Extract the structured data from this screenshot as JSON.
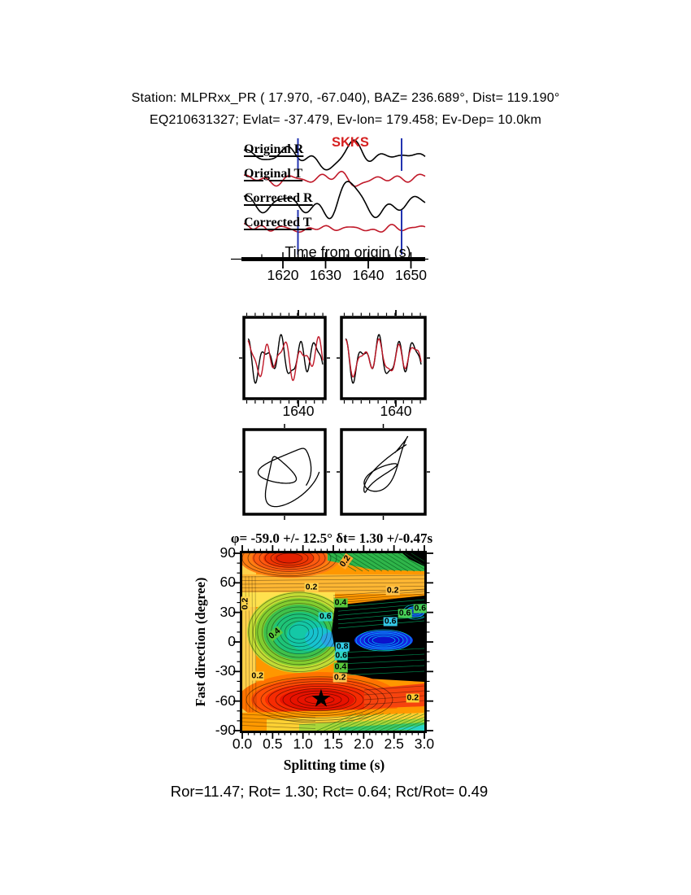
{
  "header": {
    "line1": "Station: MLPRxx_PR (  17.970,  -67.040), BAZ=  236.689°, Dist=  119.190°",
    "line2": "EQ210631327; Evlat= -37.479, Ev-lon= 179.458; Ev-Dep= 10.0km"
  },
  "waveform_panel": {
    "phase_label": "SKKS",
    "trace_labels": [
      "Original R",
      "Original T",
      "Corrected R",
      "Corrected T"
    ],
    "axis_title": "Time from origin (s)",
    "tick_labels": [
      "1620",
      "1630",
      "1640",
      "1650"
    ]
  },
  "comparison_panels": {
    "left_tick": "1640",
    "right_tick": "1640"
  },
  "contour_panel": {
    "title": "φ= -59.0 +/- 12.5° δt= 1.30 +/-0.47s",
    "ylabel": "Fast direction (degree)",
    "xlabel": "Splitting time (s)",
    "ytick_labels": [
      "90",
      "60",
      "30",
      "0",
      "-30",
      "-60",
      "-90"
    ],
    "xtick_labels": [
      "0.0",
      "0.5",
      "1.0",
      "1.5",
      "2.0",
      "2.5",
      "3.0"
    ],
    "star_glyph": "★"
  },
  "footer": {
    "text": "Ror=11.47; Rot= 1.30; Rct= 0.64; Rct/Rot= 0.49"
  },
  "colors": {
    "trace_black": "#000000",
    "trace_red": "#c01828",
    "pick_blue": "#2233b0",
    "phase_red": "#d62020"
  },
  "chart_data": {
    "type": "heatmap",
    "title": "φ= -59.0 +/- 12.5° δt= 1.30 +/-0.47s",
    "xlabel": "Splitting time (s)",
    "ylabel": "Fast direction (degree)",
    "xlim": [
      0.0,
      3.0
    ],
    "ylim": [
      -90,
      90
    ],
    "xticks": [
      0.0,
      0.5,
      1.0,
      1.5,
      2.0,
      2.5,
      3.0
    ],
    "yticks": [
      90,
      60,
      30,
      0,
      -30,
      -60,
      -90
    ],
    "grid": false,
    "best_fit": {
      "fast_direction_deg": -59.0,
      "fast_direction_err_deg": 12.5,
      "delay_time_s": 1.3,
      "delay_time_err_s": 0.47,
      "star_x_s": 1.3,
      "star_y_deg": -59
    },
    "contour_levels": [
      0.2,
      0.4,
      0.6,
      0.8
    ],
    "contour_labels": [
      {
        "v": "0.2",
        "x": 1.14,
        "y": 55,
        "rot": 0,
        "bg": "#ffd34d"
      },
      {
        "v": "0.2",
        "x": 2.48,
        "y": 52,
        "rot": 0,
        "bg": "#ffc34d"
      },
      {
        "v": "0.2",
        "x": 1.7,
        "y": 82,
        "rot": -55,
        "bg": "#ffaa33"
      },
      {
        "v": "0.2",
        "x": 0.05,
        "y": 39,
        "rot": -90,
        "bg": "#ffd34d"
      },
      {
        "v": "0.4",
        "x": 0.54,
        "y": 8,
        "rot": -40,
        "bg": "#59c93c"
      },
      {
        "v": "0.4",
        "x": 1.62,
        "y": 40,
        "rot": 0,
        "bg": "#59c93c"
      },
      {
        "v": "0.6",
        "x": 1.37,
        "y": 26,
        "rot": 0,
        "bg": "#2fd6c3"
      },
      {
        "v": "0.6",
        "x": 2.44,
        "y": 21,
        "rot": 0,
        "bg": "#35c9e8"
      },
      {
        "v": "0.6",
        "x": 2.68,
        "y": 29,
        "rot": 0,
        "bg": "#47cf57"
      },
      {
        "v": "0.6",
        "x": 2.93,
        "y": 34,
        "rot": 0,
        "bg": "#47cf57"
      },
      {
        "v": "0.8",
        "x": 1.65,
        "y": -5,
        "rot": 0,
        "bg": "#35cfe8"
      },
      {
        "v": "0.6",
        "x": 1.63,
        "y": -14,
        "rot": 0,
        "bg": "#2fd6c3"
      },
      {
        "v": "0.4",
        "x": 1.62,
        "y": -26,
        "rot": 0,
        "bg": "#59c93c"
      },
      {
        "v": "0.2",
        "x": 1.61,
        "y": -36,
        "rot": 0,
        "bg": "#ffc34d"
      },
      {
        "v": "0.2",
        "x": 2.81,
        "y": -57,
        "rot": 0,
        "bg": "#ffcc33"
      },
      {
        "v": "0.2",
        "x": 0.25,
        "y": -35,
        "rot": 0,
        "bg": "#ffd34d"
      }
    ],
    "waveform_time_axis": {
      "title": "Time from origin (s)",
      "ticks": [
        1620,
        1630,
        1640,
        1650
      ]
    },
    "pair_axis_tick": 1640,
    "quality": {
      "Ror": 11.47,
      "Rot": 1.3,
      "Rct": 0.64,
      "Rct_over_Rot": 0.49
    }
  }
}
